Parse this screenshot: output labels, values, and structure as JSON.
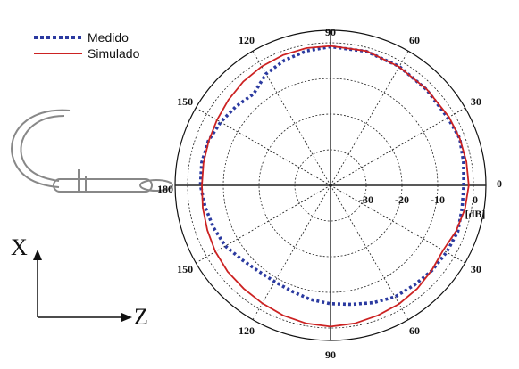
{
  "chart_data": {
    "type": "line",
    "subtype": "polar-radiation-pattern",
    "title": "",
    "radial_unit": "[dB]",
    "radial_range": [
      -40,
      0
    ],
    "radial_ticks": [
      -30,
      -20,
      -10,
      0
    ],
    "angle_ticks_upper": [
      {
        "label": "90",
        "angle": 90
      },
      {
        "label": "60",
        "angle": 60
      },
      {
        "label": "30",
        "angle": 30
      },
      {
        "label": "0",
        "angle": 0
      },
      {
        "label": "120",
        "angle": 120
      },
      {
        "label": "150",
        "angle": 150
      },
      {
        "label": "180",
        "angle": 180
      }
    ],
    "angle_ticks_lower": [
      {
        "label": "30",
        "angle": -30
      },
      {
        "label": "60",
        "angle": -60
      },
      {
        "label": "90",
        "angle": -90
      },
      {
        "label": "120",
        "angle": -120
      },
      {
        "label": "150",
        "angle": -150
      }
    ],
    "grid": true,
    "legend_position": "top-left",
    "series": [
      {
        "name": "Medido",
        "style": "dotted",
        "color": "#2b3aa0",
        "angles": [
          0,
          10,
          20,
          30,
          45,
          60,
          75,
          90,
          100,
          110,
          120,
          130,
          140,
          150,
          160,
          170,
          180,
          190,
          200,
          210,
          220,
          230,
          240,
          250,
          260,
          270,
          280,
          290,
          300,
          310,
          320,
          330,
          340,
          350
        ],
        "values": [
          -2.7,
          -2.2,
          -1.5,
          -2.1,
          -2.0,
          -1.5,
          -1.1,
          -1.1,
          -1.7,
          -2.6,
          -3.9,
          -6.5,
          -5.5,
          -4.5,
          -3.6,
          -3.4,
          -3.6,
          -4.4,
          -5.2,
          -6.0,
          -7.6,
          -8.6,
          -8.8,
          -8.4,
          -7.5,
          -6.8,
          -6.1,
          -5.0,
          -3.9,
          -3.5,
          -2.9,
          -2.5,
          -2.1,
          -2.6
        ]
      },
      {
        "name": "Simulado",
        "style": "solid",
        "color": "#cc2222",
        "angles": [
          0,
          10,
          20,
          30,
          45,
          60,
          75,
          90,
          100,
          110,
          120,
          130,
          140,
          150,
          160,
          170,
          180,
          190,
          200,
          210,
          220,
          230,
          240,
          250,
          260,
          270,
          280,
          290,
          300,
          310,
          320,
          330,
          340,
          350
        ],
        "values": [
          -1.3,
          -1.4,
          -1.5,
          -1.7,
          -1.9,
          -1.6,
          -1.0,
          -0.9,
          -0.9,
          -1.1,
          -1.5,
          -2.0,
          -2.7,
          -3.3,
          -3.7,
          -3.9,
          -4.0,
          -3.7,
          -3.3,
          -2.8,
          -2.4,
          -2.2,
          -1.8,
          -1.2,
          -0.7,
          -0.4,
          -0.7,
          -1.2,
          -1.6,
          -2.2,
          -3.0,
          -3.6,
          -2.6,
          -1.8
        ]
      }
    ]
  },
  "legend": {
    "medido": {
      "label": "Medido",
      "color": "#2b3aa0"
    },
    "simulado": {
      "label": "Simulado",
      "color": "#cc2222"
    }
  },
  "axes_indicator": {
    "vertical": "X",
    "horizontal": "Z"
  },
  "colors": {
    "grid": "#222222",
    "frame": "#111111",
    "antenna": "#888888"
  }
}
